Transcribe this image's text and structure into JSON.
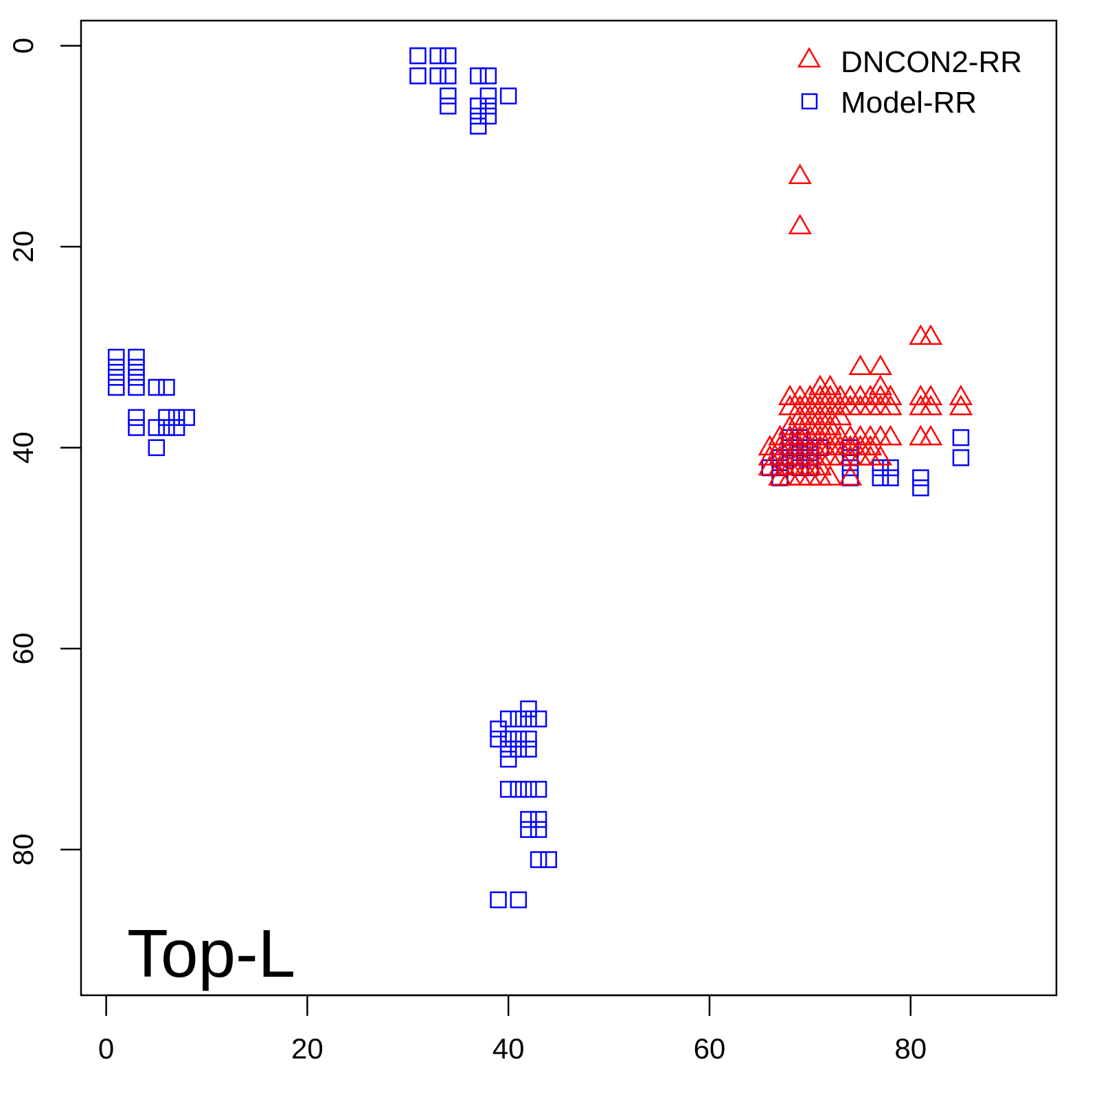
{
  "chart_data": {
    "type": "scatter",
    "title": "",
    "annotation": "Top-L",
    "xlabel": "",
    "ylabel": "",
    "xlim": [
      -2.5,
      94.5
    ],
    "ylim": [
      94.5,
      -2.5
    ],
    "y_inverted": true,
    "xticks": [
      0,
      20,
      40,
      60,
      80
    ],
    "yticks": [
      0,
      20,
      40,
      60,
      80
    ],
    "xtick_labels": [
      "0",
      "20",
      "40",
      "60",
      "80"
    ],
    "ytick_labels": [
      "0",
      "20",
      "40",
      "60",
      "80"
    ],
    "grid": false,
    "legend_position": "top-right",
    "series": [
      {
        "name": "DNCON2-RR",
        "marker": "triangle",
        "color": "#ff0000",
        "points": [
          [
            69,
            13
          ],
          [
            69,
            18
          ],
          [
            81,
            29
          ],
          [
            82,
            29
          ],
          [
            75,
            32
          ],
          [
            77,
            32
          ],
          [
            71,
            34
          ],
          [
            72,
            34
          ],
          [
            77,
            34
          ],
          [
            68,
            35
          ],
          [
            69,
            35
          ],
          [
            70,
            35
          ],
          [
            71,
            35
          ],
          [
            72,
            35
          ],
          [
            73,
            35
          ],
          [
            74,
            35
          ],
          [
            75,
            35
          ],
          [
            76,
            35
          ],
          [
            77,
            35
          ],
          [
            78,
            35
          ],
          [
            81,
            35
          ],
          [
            82,
            35
          ],
          [
            85,
            35
          ],
          [
            68,
            36
          ],
          [
            69,
            36
          ],
          [
            70,
            36
          ],
          [
            71,
            36
          ],
          [
            72,
            36
          ],
          [
            73,
            36
          ],
          [
            74,
            36
          ],
          [
            75,
            36
          ],
          [
            76,
            36
          ],
          [
            77,
            36
          ],
          [
            78,
            36
          ],
          [
            81,
            36
          ],
          [
            82,
            36
          ],
          [
            85,
            36
          ],
          [
            69,
            37
          ],
          [
            70,
            37
          ],
          [
            71,
            37
          ],
          [
            72,
            37
          ],
          [
            73,
            37
          ],
          [
            68,
            38
          ],
          [
            69,
            38
          ],
          [
            70,
            38
          ],
          [
            71,
            38
          ],
          [
            72,
            38
          ],
          [
            67,
            39
          ],
          [
            68,
            39
          ],
          [
            69,
            39
          ],
          [
            70,
            39
          ],
          [
            71,
            39
          ],
          [
            72,
            39
          ],
          [
            73,
            39
          ],
          [
            74,
            39
          ],
          [
            75,
            39
          ],
          [
            76,
            39
          ],
          [
            77,
            39
          ],
          [
            78,
            39
          ],
          [
            81,
            39
          ],
          [
            82,
            39
          ],
          [
            66,
            40
          ],
          [
            67,
            40
          ],
          [
            68,
            40
          ],
          [
            69,
            40
          ],
          [
            70,
            40
          ],
          [
            71,
            40
          ],
          [
            72,
            40
          ],
          [
            73,
            40
          ],
          [
            74,
            40
          ],
          [
            75,
            40
          ],
          [
            76,
            40
          ],
          [
            66,
            41
          ],
          [
            67,
            41
          ],
          [
            68,
            41
          ],
          [
            69,
            41
          ],
          [
            70,
            41
          ],
          [
            71,
            41
          ],
          [
            72,
            41
          ],
          [
            73,
            41
          ],
          [
            74,
            41
          ],
          [
            75,
            41
          ],
          [
            76,
            41
          ],
          [
            77,
            41
          ],
          [
            66,
            42
          ],
          [
            67,
            42
          ],
          [
            68,
            42
          ],
          [
            69,
            42
          ],
          [
            70,
            42
          ],
          [
            71,
            42
          ],
          [
            67,
            43
          ],
          [
            68,
            43
          ],
          [
            69,
            43
          ],
          [
            70,
            43
          ],
          [
            71,
            43
          ],
          [
            72,
            43
          ],
          [
            74,
            43
          ]
        ]
      },
      {
        "name": "Model-RR",
        "marker": "square",
        "color": "#0000ff",
        "points": [
          [
            31,
            1
          ],
          [
            33,
            1
          ],
          [
            34,
            1
          ],
          [
            31,
            3
          ],
          [
            33,
            3
          ],
          [
            34,
            3
          ],
          [
            34,
            5
          ],
          [
            34,
            6
          ],
          [
            37,
            3
          ],
          [
            38,
            3
          ],
          [
            38,
            5
          ],
          [
            40,
            5
          ],
          [
            37,
            6
          ],
          [
            38,
            6
          ],
          [
            37,
            7
          ],
          [
            38,
            7
          ],
          [
            37,
            8
          ],
          [
            1,
            31
          ],
          [
            3,
            31
          ],
          [
            1,
            32
          ],
          [
            1,
            33
          ],
          [
            1,
            34
          ],
          [
            3,
            32
          ],
          [
            3,
            33
          ],
          [
            3,
            34
          ],
          [
            5,
            34
          ],
          [
            6,
            34
          ],
          [
            3,
            37
          ],
          [
            3,
            38
          ],
          [
            5,
            38
          ],
          [
            6,
            37
          ],
          [
            7,
            37
          ],
          [
            8,
            37
          ],
          [
            6,
            38
          ],
          [
            7,
            38
          ],
          [
            5,
            40
          ],
          [
            42,
            66
          ],
          [
            40,
            67
          ],
          [
            41,
            67
          ],
          [
            42,
            67
          ],
          [
            43,
            67
          ],
          [
            39,
            68
          ],
          [
            39,
            69
          ],
          [
            40,
            69
          ],
          [
            41,
            69
          ],
          [
            42,
            69
          ],
          [
            40,
            70
          ],
          [
            41,
            70
          ],
          [
            42,
            70
          ],
          [
            40,
            71
          ],
          [
            40,
            74
          ],
          [
            41,
            74
          ],
          [
            42,
            74
          ],
          [
            43,
            74
          ],
          [
            42,
            77
          ],
          [
            43,
            77
          ],
          [
            42,
            78
          ],
          [
            43,
            78
          ],
          [
            43,
            81
          ],
          [
            44,
            81
          ],
          [
            39,
            85
          ],
          [
            41,
            85
          ],
          [
            85,
            39
          ],
          [
            85,
            41
          ],
          [
            81,
            43
          ],
          [
            81,
            44
          ],
          [
            77,
            42
          ],
          [
            78,
            42
          ],
          [
            77,
            43
          ],
          [
            78,
            43
          ],
          [
            74,
            40
          ],
          [
            74,
            41
          ],
          [
            74,
            42
          ],
          [
            74,
            43
          ],
          [
            66,
            42
          ],
          [
            67,
            43
          ],
          [
            67,
            41
          ],
          [
            67,
            42
          ],
          [
            68,
            39
          ],
          [
            68,
            40
          ],
          [
            68,
            41
          ],
          [
            69,
            39
          ],
          [
            69,
            40
          ],
          [
            69,
            41
          ],
          [
            69,
            42
          ],
          [
            70,
            40
          ],
          [
            70,
            41
          ],
          [
            70,
            42
          ],
          [
            71,
            40
          ]
        ]
      }
    ]
  }
}
